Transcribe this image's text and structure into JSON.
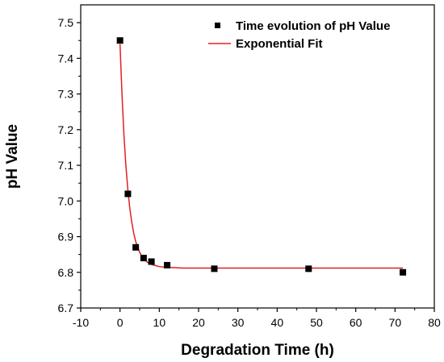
{
  "chart_data": {
    "type": "scatter",
    "xlabel": "Degradation Time (h)",
    "ylabel": "pH Value",
    "xlim": [
      -10,
      80
    ],
    "ylim": [
      6.7,
      7.55
    ],
    "x_ticks": [
      -10,
      0,
      10,
      20,
      30,
      40,
      50,
      60,
      70,
      80
    ],
    "y_ticks": [
      6.7,
      6.8,
      6.9,
      7.0,
      7.1,
      7.2,
      7.3,
      7.4,
      7.5
    ],
    "x_tick_labels": [
      "-10",
      "0",
      "10",
      "20",
      "30",
      "40",
      "50",
      "60",
      "70",
      "80"
    ],
    "y_tick_labels": [
      "6.7",
      "6.8",
      "6.9",
      "7.0",
      "7.1",
      "7.2",
      "7.3",
      "7.4",
      "7.5"
    ],
    "grid": false,
    "legend_position": "top-right",
    "series": [
      {
        "name": "Time evolution of pH Value",
        "kind": "scatter",
        "marker": "square",
        "color": "#000000",
        "x": [
          0,
          2,
          4,
          6,
          8,
          12,
          24,
          48,
          72
        ],
        "y": [
          7.45,
          7.02,
          6.87,
          6.84,
          6.83,
          6.82,
          6.81,
          6.81,
          6.8
        ]
      },
      {
        "name": "Exponential Fit",
        "kind": "line",
        "color": "#e02020",
        "x": [
          0,
          0.5,
          1,
          1.5,
          2,
          2.5,
          3,
          3.5,
          4,
          5,
          6,
          7,
          8,
          9,
          10,
          12,
          14,
          16,
          20,
          30,
          40,
          50,
          60,
          72
        ],
        "y": [
          7.44,
          7.3,
          7.185,
          7.098,
          7.031,
          6.979,
          6.94,
          6.909,
          6.886,
          6.856,
          6.838,
          6.828,
          6.822,
          6.819,
          6.816,
          6.814,
          6.813,
          6.812,
          6.812,
          6.812,
          6.812,
          6.812,
          6.812,
          6.812
        ]
      }
    ]
  }
}
